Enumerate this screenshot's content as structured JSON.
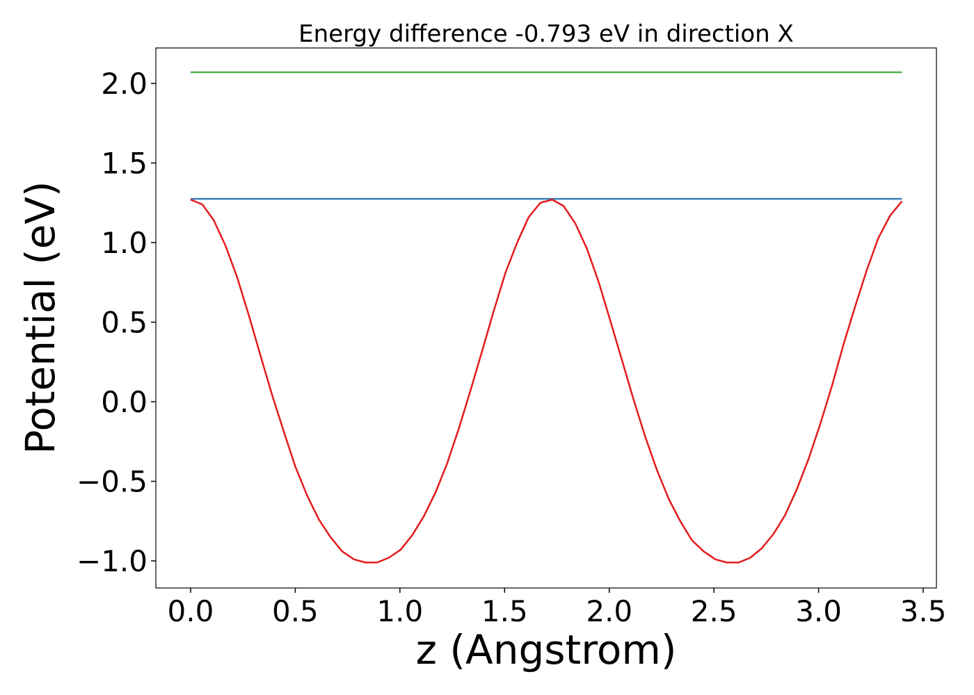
{
  "chart_data": {
    "type": "line",
    "title": "Energy difference -0.793 eV in direction X",
    "xlabel": "z (Angstrom)",
    "ylabel": "Potential (eV)",
    "xlim": [
      -0.166,
      3.563
    ],
    "ylim": [
      -1.17,
      2.223
    ],
    "xticks": [
      {
        "value": 0,
        "label": "0.0"
      },
      {
        "value": 0.5,
        "label": "0.5"
      },
      {
        "value": 1,
        "label": "1.0"
      },
      {
        "value": 1.5,
        "label": "1.5"
      },
      {
        "value": 2,
        "label": "2.0"
      },
      {
        "value": 2.5,
        "label": "2.5"
      },
      {
        "value": 3,
        "label": "3.0"
      },
      {
        "value": 3.5,
        "label": "3.5"
      }
    ],
    "yticks": [
      {
        "value": -1,
        "label": "−1.0"
      },
      {
        "value": -0.5,
        "label": "−0.5"
      },
      {
        "value": 0,
        "label": "0.0"
      },
      {
        "value": 0.5,
        "label": "0.5"
      },
      {
        "value": 1,
        "label": "1.0"
      },
      {
        "value": 1.5,
        "label": "1.5"
      },
      {
        "value": 2,
        "label": "2.0"
      }
    ],
    "grid": false,
    "series": [
      {
        "color": "#4daf4a",
        "x": [
          0,
          3.398
        ],
        "values": [
          2.07,
          2.07
        ]
      },
      {
        "color": "#377eb8",
        "x": [
          0,
          3.398
        ],
        "values": [
          1.275,
          1.275
        ]
      },
      {
        "color": "#e41a1c",
        "x": [
          0,
          0.056,
          0.111,
          0.167,
          0.223,
          0.279,
          0.334,
          0.39,
          0.446,
          0.501,
          0.557,
          0.613,
          0.668,
          0.724,
          0.78,
          0.836,
          0.891,
          0.947,
          1.003,
          1.058,
          1.114,
          1.17,
          1.225,
          1.281,
          1.337,
          1.393,
          1.448,
          1.504,
          1.56,
          1.615,
          1.671,
          1.727,
          1.782,
          1.838,
          1.894,
          1.95,
          2.005,
          2.061,
          2.117,
          2.172,
          2.228,
          2.284,
          2.339,
          2.395,
          2.451,
          2.507,
          2.562,
          2.618,
          2.674,
          2.729,
          2.785,
          2.841,
          2.896,
          2.952,
          3.008,
          3.064,
          3.119,
          3.175,
          3.231,
          3.286,
          3.342,
          3.398
        ],
        "values": [
          1.27,
          1.24,
          1.14,
          0.98,
          0.78,
          0.54,
          0.29,
          0.04,
          -0.19,
          -0.41,
          -0.59,
          -0.74,
          -0.85,
          -0.94,
          -0.99,
          -1.01,
          -1.01,
          -0.98,
          -0.93,
          -0.84,
          -0.72,
          -0.57,
          -0.39,
          -0.17,
          0.07,
          0.32,
          0.57,
          0.81,
          1.0,
          1.16,
          1.25,
          1.27,
          1.23,
          1.12,
          0.96,
          0.75,
          0.51,
          0.26,
          0.01,
          -0.22,
          -0.43,
          -0.61,
          -0.75,
          -0.87,
          -0.94,
          -0.99,
          -1.01,
          -1.01,
          -0.98,
          -0.92,
          -0.83,
          -0.71,
          -0.55,
          -0.36,
          -0.14,
          0.1,
          0.36,
          0.6,
          0.83,
          1.03,
          1.17,
          1.26
        ]
      }
    ]
  }
}
